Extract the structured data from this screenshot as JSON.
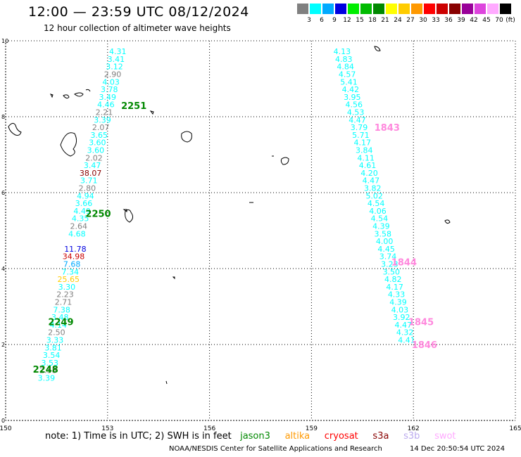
{
  "header": {
    "title": "12:00 — 23:59 UTC 08/12/2024",
    "subtitle": "12 hour collection of altimeter wave heights"
  },
  "colorbar": {
    "unit": "(ft)",
    "bins": [
      {
        "label": "3",
        "color": "#808080"
      },
      {
        "label": "6",
        "color": "#00ffff"
      },
      {
        "label": "9",
        "color": "#00aaff"
      },
      {
        "label": "12",
        "color": "#0000e0"
      },
      {
        "label": "15",
        "color": "#00ee00"
      },
      {
        "label": "18",
        "color": "#00bb00"
      },
      {
        "label": "21",
        "color": "#008800"
      },
      {
        "label": "24",
        "color": "#ffff00"
      },
      {
        "label": "27",
        "color": "#ffcc00"
      },
      {
        "label": "30",
        "color": "#ff9900"
      },
      {
        "label": "33",
        "color": "#ff0000"
      },
      {
        "label": "36",
        "color": "#cc0000"
      },
      {
        "label": "39",
        "color": "#880000"
      },
      {
        "label": "42",
        "color": "#990099"
      },
      {
        "label": "45",
        "color": "#dd44dd"
      },
      {
        "label": "70",
        "color": "#ffaaff"
      },
      {
        "label": "",
        "color": "#000000"
      }
    ]
  },
  "map": {
    "lon_range": [
      150,
      165
    ],
    "lat_range": [
      0,
      10
    ],
    "lon_ticks": [
      "150",
      "153",
      "156",
      "159",
      "162",
      "165"
    ],
    "lat_ticks": [
      "0",
      "2",
      "4",
      "6",
      "8",
      "10"
    ],
    "grid": true,
    "observations": [
      {
        "lon": 153.3,
        "lat": 9.72,
        "value": "4.31",
        "color": "#00ffff"
      },
      {
        "lon": 153.25,
        "lat": 9.52,
        "value": "3.41",
        "color": "#00ffff"
      },
      {
        "lon": 153.2,
        "lat": 9.32,
        "value": "3.12",
        "color": "#00ffff"
      },
      {
        "lon": 153.15,
        "lat": 9.12,
        "value": "2.90",
        "color": "#808080"
      },
      {
        "lon": 153.1,
        "lat": 8.92,
        "value": "4.03",
        "color": "#00ffff"
      },
      {
        "lon": 153.05,
        "lat": 8.72,
        "value": "3.78",
        "color": "#00ffff"
      },
      {
        "lon": 153.0,
        "lat": 8.52,
        "value": "3.49",
        "color": "#00ffff"
      },
      {
        "lon": 152.95,
        "lat": 8.32,
        "value": "4.46",
        "color": "#00ffff"
      },
      {
        "lon": 152.9,
        "lat": 8.12,
        "value": "2.21",
        "color": "#808080"
      },
      {
        "lon": 152.85,
        "lat": 7.92,
        "value": "3.39",
        "color": "#00ffff"
      },
      {
        "lon": 152.8,
        "lat": 7.72,
        "value": "2.07",
        "color": "#808080"
      },
      {
        "lon": 152.75,
        "lat": 7.52,
        "value": "3.65",
        "color": "#00ffff"
      },
      {
        "lon": 152.7,
        "lat": 7.32,
        "value": "3.60",
        "color": "#00ffff"
      },
      {
        "lon": 152.65,
        "lat": 7.12,
        "value": "3.60",
        "color": "#00ffff"
      },
      {
        "lon": 152.6,
        "lat": 6.92,
        "value": "2.02",
        "color": "#808080"
      },
      {
        "lon": 152.55,
        "lat": 6.72,
        "value": "3.47",
        "color": "#00ffff"
      },
      {
        "lon": 152.5,
        "lat": 6.52,
        "value": "38.07",
        "color": "#880000"
      },
      {
        "lon": 152.45,
        "lat": 6.32,
        "value": "3.71",
        "color": "#00ffff"
      },
      {
        "lon": 152.4,
        "lat": 6.12,
        "value": "2.80",
        "color": "#808080"
      },
      {
        "lon": 152.35,
        "lat": 5.92,
        "value": "4.94",
        "color": "#00ffff"
      },
      {
        "lon": 152.3,
        "lat": 5.72,
        "value": "3.66",
        "color": "#00ffff"
      },
      {
        "lon": 152.25,
        "lat": 5.52,
        "value": "4.49",
        "color": "#00ffff"
      },
      {
        "lon": 152.2,
        "lat": 5.32,
        "value": "4.35",
        "color": "#00ffff"
      },
      {
        "lon": 152.15,
        "lat": 5.12,
        "value": "2.64",
        "color": "#808080"
      },
      {
        "lon": 152.1,
        "lat": 4.92,
        "value": "4.68",
        "color": "#00ffff"
      },
      {
        "lon": 152.05,
        "lat": 4.52,
        "value": "11.78",
        "color": "#0000e0"
      },
      {
        "lon": 152.0,
        "lat": 4.32,
        "value": "34.98",
        "color": "#cc0000"
      },
      {
        "lon": 151.95,
        "lat": 4.12,
        "value": "7.68",
        "color": "#00aaff"
      },
      {
        "lon": 151.9,
        "lat": 3.92,
        "value": "7.34",
        "color": "#00ffff"
      },
      {
        "lon": 151.85,
        "lat": 3.72,
        "value": "25.65",
        "color": "#ffcc00"
      },
      {
        "lon": 151.8,
        "lat": 3.52,
        "value": "3.30",
        "color": "#00ffff"
      },
      {
        "lon": 151.75,
        "lat": 3.32,
        "value": "2.23",
        "color": "#808080"
      },
      {
        "lon": 151.7,
        "lat": 3.12,
        "value": "2.71",
        "color": "#808080"
      },
      {
        "lon": 151.65,
        "lat": 2.92,
        "value": "7.38",
        "color": "#00ffff"
      },
      {
        "lon": 151.6,
        "lat": 2.72,
        "value": "3.48",
        "color": "#00ffff"
      },
      {
        "lon": 151.55,
        "lat": 2.52,
        "value": "4.14",
        "color": "#00ffff"
      },
      {
        "lon": 151.5,
        "lat": 2.32,
        "value": "2.50",
        "color": "#808080"
      },
      {
        "lon": 151.45,
        "lat": 2.12,
        "value": "3.33",
        "color": "#00ffff"
      },
      {
        "lon": 151.4,
        "lat": 1.92,
        "value": "3.81",
        "color": "#00ffff"
      },
      {
        "lon": 151.35,
        "lat": 1.72,
        "value": "3.54",
        "color": "#00ffff"
      },
      {
        "lon": 151.3,
        "lat": 1.52,
        "value": "3.53",
        "color": "#00ffff"
      },
      {
        "lon": 151.25,
        "lat": 1.32,
        "value": "2.58",
        "color": "#808080"
      },
      {
        "lon": 151.2,
        "lat": 1.12,
        "value": "3.39",
        "color": "#00ffff"
      },
      {
        "lon": 159.9,
        "lat": 9.72,
        "value": "4.13",
        "color": "#00ffff"
      },
      {
        "lon": 159.95,
        "lat": 9.52,
        "value": "4.83",
        "color": "#00ffff"
      },
      {
        "lon": 160.0,
        "lat": 9.32,
        "value": "4.84",
        "color": "#00ffff"
      },
      {
        "lon": 160.05,
        "lat": 9.12,
        "value": "4.57",
        "color": "#00ffff"
      },
      {
        "lon": 160.1,
        "lat": 8.92,
        "value": "5.41",
        "color": "#00ffff"
      },
      {
        "lon": 160.15,
        "lat": 8.72,
        "value": "4.42",
        "color": "#00ffff"
      },
      {
        "lon": 160.2,
        "lat": 8.52,
        "value": "3.95",
        "color": "#00ffff"
      },
      {
        "lon": 160.25,
        "lat": 8.32,
        "value": "4.56",
        "color": "#00ffff"
      },
      {
        "lon": 160.3,
        "lat": 8.12,
        "value": "4.53",
        "color": "#00ffff"
      },
      {
        "lon": 160.35,
        "lat": 7.92,
        "value": "4.47",
        "color": "#00ffff"
      },
      {
        "lon": 160.4,
        "lat": 7.72,
        "value": "3.79",
        "color": "#00ffff"
      },
      {
        "lon": 160.45,
        "lat": 7.52,
        "value": "5.71",
        "color": "#00ffff"
      },
      {
        "lon": 160.5,
        "lat": 7.32,
        "value": "4.17",
        "color": "#00ffff"
      },
      {
        "lon": 160.55,
        "lat": 7.12,
        "value": "3.84",
        "color": "#00ffff"
      },
      {
        "lon": 160.6,
        "lat": 6.92,
        "value": "4.11",
        "color": "#00ffff"
      },
      {
        "lon": 160.65,
        "lat": 6.72,
        "value": "4.61",
        "color": "#00ffff"
      },
      {
        "lon": 160.7,
        "lat": 6.52,
        "value": "4.20",
        "color": "#00ffff"
      },
      {
        "lon": 160.75,
        "lat": 6.32,
        "value": "4.47",
        "color": "#00ffff"
      },
      {
        "lon": 160.8,
        "lat": 6.12,
        "value": "3.82",
        "color": "#00ffff"
      },
      {
        "lon": 160.85,
        "lat": 5.92,
        "value": "5.02",
        "color": "#00ffff"
      },
      {
        "lon": 160.9,
        "lat": 5.72,
        "value": "4.54",
        "color": "#00ffff"
      },
      {
        "lon": 160.95,
        "lat": 5.52,
        "value": "4.06",
        "color": "#00ffff"
      },
      {
        "lon": 161.0,
        "lat": 5.32,
        "value": "4.54",
        "color": "#00ffff"
      },
      {
        "lon": 161.05,
        "lat": 5.12,
        "value": "4.39",
        "color": "#00ffff"
      },
      {
        "lon": 161.1,
        "lat": 4.92,
        "value": "3.58",
        "color": "#00ffff"
      },
      {
        "lon": 161.15,
        "lat": 4.72,
        "value": "4.00",
        "color": "#00ffff"
      },
      {
        "lon": 161.2,
        "lat": 4.52,
        "value": "4.45",
        "color": "#00ffff"
      },
      {
        "lon": 161.25,
        "lat": 4.32,
        "value": "3.74",
        "color": "#00ffff"
      },
      {
        "lon": 161.3,
        "lat": 4.12,
        "value": "3.23",
        "color": "#00ffff"
      },
      {
        "lon": 161.35,
        "lat": 3.92,
        "value": "3.50",
        "color": "#00ffff"
      },
      {
        "lon": 161.4,
        "lat": 3.72,
        "value": "4.82",
        "color": "#00ffff"
      },
      {
        "lon": 161.45,
        "lat": 3.52,
        "value": "4.17",
        "color": "#00ffff"
      },
      {
        "lon": 161.5,
        "lat": 3.32,
        "value": "4.33",
        "color": "#00ffff"
      },
      {
        "lon": 161.55,
        "lat": 3.12,
        "value": "4.39",
        "color": "#00ffff"
      },
      {
        "lon": 161.6,
        "lat": 2.92,
        "value": "4.03",
        "color": "#00ffff"
      },
      {
        "lon": 161.65,
        "lat": 2.72,
        "value": "3.92",
        "color": "#00ffff"
      },
      {
        "lon": 161.7,
        "lat": 2.52,
        "value": "4.47",
        "color": "#00ffff"
      },
      {
        "lon": 161.75,
        "lat": 2.32,
        "value": "4.32",
        "color": "#00ffff"
      },
      {
        "lon": 161.8,
        "lat": 2.12,
        "value": "4.41",
        "color": "#00ffff"
      }
    ],
    "pass_labels": [
      {
        "lon": 153.4,
        "lat": 8.3,
        "text": "2251",
        "color": "#008800"
      },
      {
        "lon": 152.35,
        "lat": 5.45,
        "text": "2250",
        "color": "#008800"
      },
      {
        "lon": 151.25,
        "lat": 2.6,
        "text": "2249",
        "color": "#008800"
      },
      {
        "lon": 150.8,
        "lat": 1.35,
        "text": "2248",
        "color": "#008800"
      },
      {
        "lon": 160.85,
        "lat": 7.72,
        "text": "1843",
        "color": "#ff88dd"
      },
      {
        "lon": 161.35,
        "lat": 4.18,
        "text": "1844",
        "color": "#ff88dd"
      },
      {
        "lon": 161.85,
        "lat": 2.6,
        "text": "1845",
        "color": "#ff88dd"
      },
      {
        "lon": 161.95,
        "lat": 2.0,
        "text": "1846",
        "color": "#ff88dd"
      }
    ]
  },
  "note": {
    "prefix": "note:  1) Time is in UTC; 2) SWH is in feet",
    "satellites": [
      {
        "name": "jason3",
        "color": "#008800"
      },
      {
        "name": "altika",
        "color": "#ff9900"
      },
      {
        "name": "cryosat",
        "color": "#ff0000"
      },
      {
        "name": "s3a",
        "color": "#880000"
      },
      {
        "name": "s3b",
        "color": "#bbaaee"
      },
      {
        "name": "swot",
        "color": "#ffaaff"
      }
    ]
  },
  "footer": {
    "org": "NOAA/NESDIS Center for Satellite Applications and Research",
    "timestamp": "14 Dec 20:50:54 UTC 2024"
  }
}
